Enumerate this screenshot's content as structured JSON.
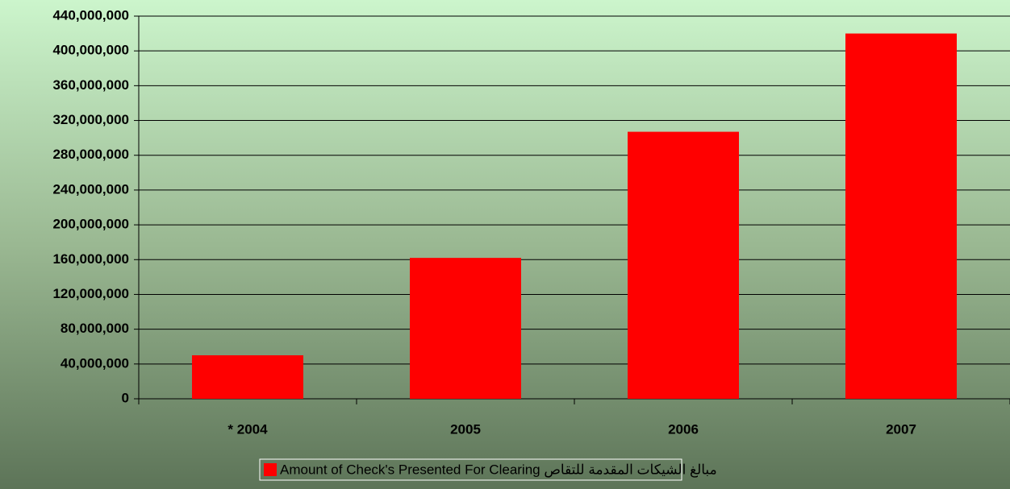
{
  "chart_data": {
    "type": "bar",
    "categories": [
      "* 2004",
      "2005",
      "2006",
      "2007"
    ],
    "series": [
      {
        "name": "Amount of Check's Presented  For Clearing مبالغ الشيكات المقدمة للتقاص",
        "color": "#ff0000",
        "values": [
          50000000,
          162000000,
          307000000,
          420000000
        ]
      }
    ],
    "ylim": [
      0,
      440000000
    ],
    "yticks": [
      0,
      {
        "value": 40000000,
        "label": "40,000,000"
      },
      {
        "value": 80000000,
        "label": "80,000,000"
      },
      {
        "value": 120000000,
        "label": "120,000,000"
      },
      {
        "value": 160000000,
        "label": "160,000,000"
      },
      {
        "value": 200000000,
        "label": "200,000,000"
      },
      {
        "value": 240000000,
        "label": "240,000,000"
      },
      {
        "value": 280000000,
        "label": "280,000,000"
      },
      {
        "value": 320000000,
        "label": "320,000,000"
      },
      {
        "value": 360000000,
        "label": "360,000,000"
      },
      {
        "value": 400000000,
        "label": "400,000,000"
      },
      {
        "value": 440000000,
        "label": "440,000,000"
      }
    ],
    "grid": true,
    "legend": "bottom"
  }
}
